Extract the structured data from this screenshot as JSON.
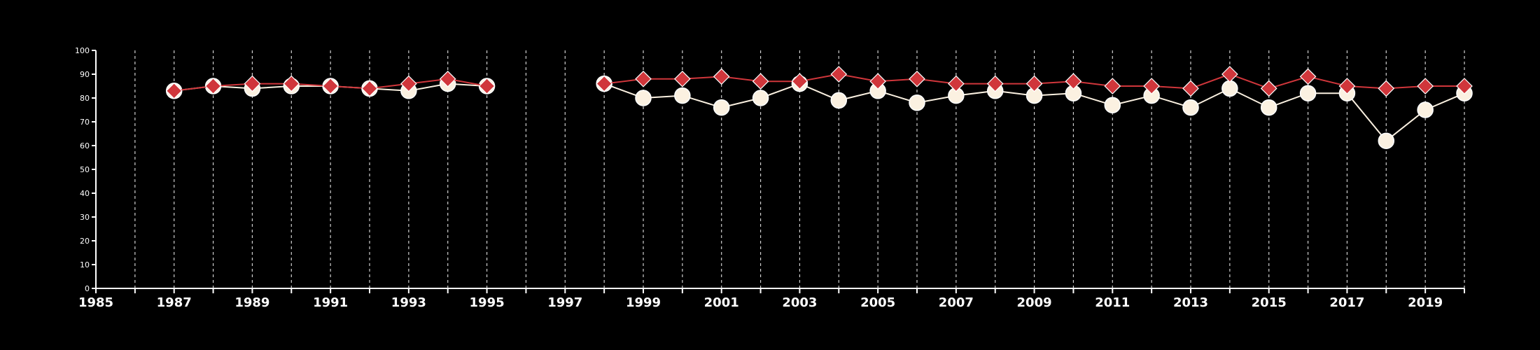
{
  "chart_data": {
    "type": "line",
    "title": "",
    "xlabel": "",
    "ylabel": "",
    "xlim": [
      1985,
      2020
    ],
    "ylim": [
      0,
      100
    ],
    "yticks": [
      0,
      10,
      20,
      30,
      40,
      50,
      60,
      70,
      80,
      90,
      100
    ],
    "xtick_labels": [
      1985,
      1987,
      1989,
      1991,
      1993,
      1995,
      1997,
      1999,
      2001,
      2003,
      2005,
      2007,
      2009,
      2011,
      2013,
      2015,
      2017,
      2019
    ],
    "grid": "vertical dashed lines at each year",
    "background": "#000000",
    "series": [
      {
        "marker": "circle",
        "color": "#fbf1e1",
        "points": [
          [
            1987,
            83
          ],
          [
            1988,
            85
          ],
          [
            1989,
            84
          ],
          [
            1990,
            85
          ],
          [
            1991,
            85
          ],
          [
            1992,
            84
          ],
          [
            1993,
            83
          ],
          [
            1994,
            86
          ],
          [
            1995,
            85
          ],
          [
            1998,
            86
          ],
          [
            1999,
            80
          ],
          [
            2000,
            81
          ],
          [
            2001,
            76
          ],
          [
            2002,
            80
          ],
          [
            2003,
            86
          ],
          [
            2004,
            79
          ],
          [
            2005,
            83
          ],
          [
            2006,
            78
          ],
          [
            2007,
            81
          ],
          [
            2008,
            83
          ],
          [
            2009,
            81
          ],
          [
            2010,
            82
          ],
          [
            2011,
            77
          ],
          [
            2012,
            81
          ],
          [
            2013,
            76
          ],
          [
            2014,
            84
          ],
          [
            2015,
            76
          ],
          [
            2016,
            82
          ],
          [
            2017,
            82
          ],
          [
            2018,
            62
          ],
          [
            2019,
            75
          ],
          [
            2020,
            82
          ]
        ]
      },
      {
        "marker": "diamond",
        "color": "#d0363b",
        "points": [
          [
            1987,
            83
          ],
          [
            1988,
            85
          ],
          [
            1989,
            86
          ],
          [
            1990,
            86
          ],
          [
            1991,
            85
          ],
          [
            1992,
            84
          ],
          [
            1993,
            86
          ],
          [
            1994,
            88
          ],
          [
            1995,
            85
          ],
          [
            1998,
            86
          ],
          [
            1999,
            88
          ],
          [
            2000,
            88
          ],
          [
            2001,
            89
          ],
          [
            2002,
            87
          ],
          [
            2003,
            87
          ],
          [
            2004,
            90
          ],
          [
            2005,
            87
          ],
          [
            2006,
            88
          ],
          [
            2007,
            86
          ],
          [
            2008,
            86
          ],
          [
            2009,
            86
          ],
          [
            2010,
            87
          ],
          [
            2011,
            85
          ],
          [
            2012,
            85
          ],
          [
            2013,
            84
          ],
          [
            2014,
            90
          ],
          [
            2015,
            84
          ],
          [
            2016,
            89
          ],
          [
            2017,
            85
          ],
          [
            2018,
            84
          ],
          [
            2019,
            85
          ],
          [
            2020,
            85
          ]
        ]
      }
    ]
  }
}
